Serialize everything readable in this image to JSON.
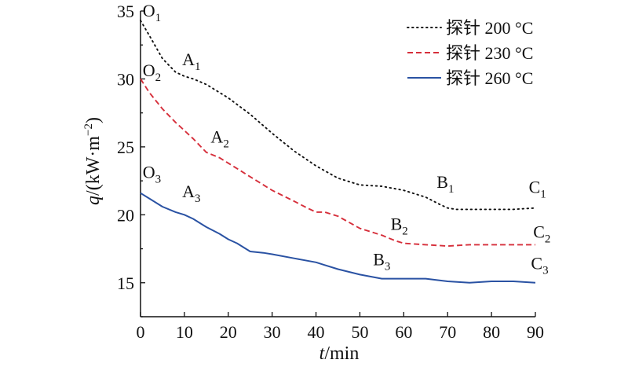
{
  "chart_data": {
    "type": "line",
    "xlabel": {
      "var": "t",
      "unit": "/min"
    },
    "ylabel": {
      "var": "q",
      "unit_main": "/(kW·m",
      "unit_sup": "−2",
      "unit_end": ")"
    },
    "xlim": [
      0,
      90
    ],
    "ylim": [
      12.5,
      35
    ],
    "xticks": [
      0,
      10,
      20,
      30,
      40,
      50,
      60,
      70,
      80,
      90
    ],
    "yticks": [
      15,
      20,
      25,
      30,
      35
    ],
    "grid": false,
    "legend_position": "top-right",
    "series": [
      {
        "name": "探针 200 °C",
        "color": "#111111",
        "style": "dotted",
        "x": [
          0,
          2,
          5,
          8,
          10,
          12,
          15,
          18,
          20,
          25,
          30,
          35,
          40,
          45,
          50,
          55,
          60,
          62,
          65,
          68,
          70,
          72,
          75,
          80,
          85,
          90
        ],
        "y": [
          34.3,
          33.2,
          31.5,
          30.5,
          30.2,
          30.0,
          29.6,
          29.0,
          28.6,
          27.4,
          26.0,
          24.7,
          23.6,
          22.7,
          22.2,
          22.1,
          21.8,
          21.6,
          21.3,
          20.8,
          20.5,
          20.4,
          20.4,
          20.4,
          20.4,
          20.5
        ]
      },
      {
        "name": "探针 230 °C",
        "color": "#d62f3b",
        "style": "dashed",
        "x": [
          0,
          2,
          5,
          8,
          10,
          12,
          15,
          18,
          20,
          25,
          30,
          35,
          38,
          40,
          42,
          45,
          50,
          55,
          58,
          60,
          65,
          70,
          75,
          80,
          85,
          90
        ],
        "y": [
          30.0,
          29.0,
          27.8,
          26.8,
          26.2,
          25.6,
          24.6,
          24.2,
          23.8,
          22.8,
          21.8,
          21.0,
          20.5,
          20.2,
          20.2,
          19.9,
          19.0,
          18.5,
          18.1,
          17.9,
          17.8,
          17.7,
          17.8,
          17.8,
          17.8,
          17.8
        ]
      },
      {
        "name": "探针 260 °C",
        "color": "#2a52a3",
        "style": "solid",
        "x": [
          0,
          2,
          5,
          8,
          10,
          12,
          15,
          18,
          20,
          22,
          25,
          28,
          30,
          35,
          40,
          42,
          45,
          50,
          55,
          58,
          60,
          65,
          70,
          75,
          80,
          85,
          90
        ],
        "y": [
          21.6,
          21.2,
          20.6,
          20.2,
          20.0,
          19.7,
          19.1,
          18.6,
          18.2,
          17.9,
          17.3,
          17.2,
          17.1,
          16.8,
          16.5,
          16.3,
          16.0,
          15.6,
          15.3,
          15.3,
          15.3,
          15.3,
          15.1,
          15.0,
          15.1,
          15.1,
          15.0
        ]
      }
    ],
    "annotations": [
      {
        "main": "O",
        "sub": "1",
        "x": 0.5,
        "y": 34.6
      },
      {
        "main": "A",
        "sub": "1",
        "x": 9.5,
        "y": 31.0
      },
      {
        "main": "O",
        "sub": "2",
        "x": 0.5,
        "y": 30.2
      },
      {
        "main": "A",
        "sub": "2",
        "x": 16.0,
        "y": 25.3
      },
      {
        "main": "B",
        "sub": "1",
        "x": 67.5,
        "y": 22.0
      },
      {
        "main": "C",
        "sub": "1",
        "x": 88.5,
        "y": 21.6
      },
      {
        "main": "O",
        "sub": "3",
        "x": 0.5,
        "y": 22.7
      },
      {
        "main": "A",
        "sub": "3",
        "x": 9.5,
        "y": 21.3
      },
      {
        "main": "B",
        "sub": "2",
        "x": 57.0,
        "y": 18.9
      },
      {
        "main": "C",
        "sub": "2",
        "x": 89.5,
        "y": 18.3
      },
      {
        "main": "B",
        "sub": "3",
        "x": 53.0,
        "y": 16.3
      },
      {
        "main": "C",
        "sub": "3",
        "x": 89.0,
        "y": 16.0
      }
    ]
  }
}
